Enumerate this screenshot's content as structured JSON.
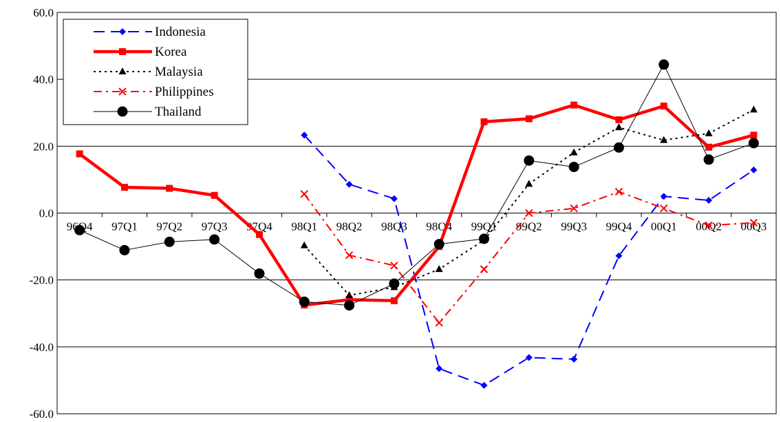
{
  "chart_data": {
    "type": "line",
    "title": "",
    "xlabel": "",
    "ylabel": "",
    "ylim": [
      -60,
      60
    ],
    "y_ticks": [
      60,
      40,
      20,
      0,
      -20,
      -40,
      -60
    ],
    "y_tick_labels": [
      "60.0",
      "40.0",
      "20.0",
      "0.0",
      "-20.0",
      "-40.0",
      "-60.0"
    ],
    "grid": "horizontal",
    "legend_position": "top-left",
    "categories": [
      "96Q4",
      "97Q1",
      "97Q2",
      "97Q3",
      "97Q4",
      "98Q1",
      "98Q2",
      "98Q3",
      "98Q4",
      "99Q1",
      "99Q2",
      "99Q3",
      "99Q4",
      "00Q1",
      "00Q2",
      "00Q3"
    ],
    "series": [
      {
        "name": "Indonesia",
        "color": "#0000ff",
        "line_style": "dashed",
        "marker": "diamond",
        "values": [
          null,
          null,
          null,
          null,
          null,
          23.3,
          8.6,
          4.3,
          -46.5,
          -51.5,
          -43.2,
          -43.7,
          -12.8,
          5.0,
          3.8,
          12.9
        ]
      },
      {
        "name": "Korea",
        "color": "#ff0000",
        "line_style": "solid-thick",
        "marker": "square",
        "values": [
          17.7,
          7.7,
          7.4,
          5.3,
          -6.4,
          -27.5,
          -25.9,
          -26.2,
          -10.0,
          27.3,
          28.2,
          32.3,
          27.9,
          32.0,
          19.7,
          23.3
        ]
      },
      {
        "name": "Malaysia",
        "color": "#000000",
        "line_style": "dotted",
        "marker": "triangle",
        "values": [
          null,
          null,
          null,
          null,
          null,
          -9.7,
          -24.6,
          -22.2,
          -16.8,
          -8.1,
          8.7,
          18.1,
          25.6,
          21.8,
          23.8,
          30.9
        ]
      },
      {
        "name": "Philippines",
        "color": "#ff0000",
        "line_style": "dash-dot",
        "marker": "x",
        "values": [
          null,
          null,
          null,
          null,
          null,
          5.7,
          -12.6,
          -15.7,
          -32.8,
          -16.8,
          0.0,
          1.4,
          6.4,
          1.4,
          -3.7,
          -2.9
        ]
      },
      {
        "name": "Thailand",
        "color": "#000000",
        "line_style": "solid-thin",
        "marker": "circle",
        "values": [
          -5.1,
          -11.1,
          -8.6,
          -7.9,
          -18.1,
          -26.5,
          -27.6,
          -21.1,
          -9.3,
          -7.7,
          15.7,
          13.8,
          19.6,
          44.4,
          16.0,
          20.9
        ]
      }
    ]
  }
}
